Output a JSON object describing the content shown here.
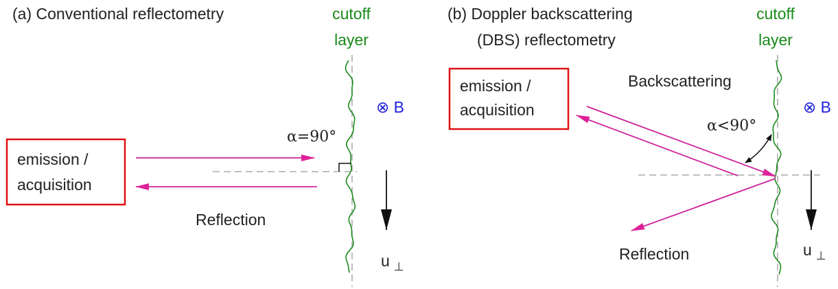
{
  "panels": [
    {
      "title_lines": [
        "(a) Conventional reflectometry"
      ],
      "cutoff_label": [
        "cutoff",
        "layer"
      ],
      "field": "⊗ B",
      "angle": "α=90°",
      "box_lines": [
        "emission /",
        "acquisition"
      ],
      "reflection": "Reflection",
      "velocity": "u",
      "velocity_sub": "⊥"
    },
    {
      "title_lines": [
        "(b) Doppler backscattering",
        "(DBS) reflectometry"
      ],
      "cutoff_label": [
        "cutoff",
        "layer"
      ],
      "field": "⊗ B",
      "angle": "α<90°",
      "box_lines": [
        "emission /",
        "acquisition"
      ],
      "backscattering": "Backscattering",
      "reflection": "Reflection",
      "velocity": "u",
      "velocity_sub": "⊥"
    }
  ]
}
